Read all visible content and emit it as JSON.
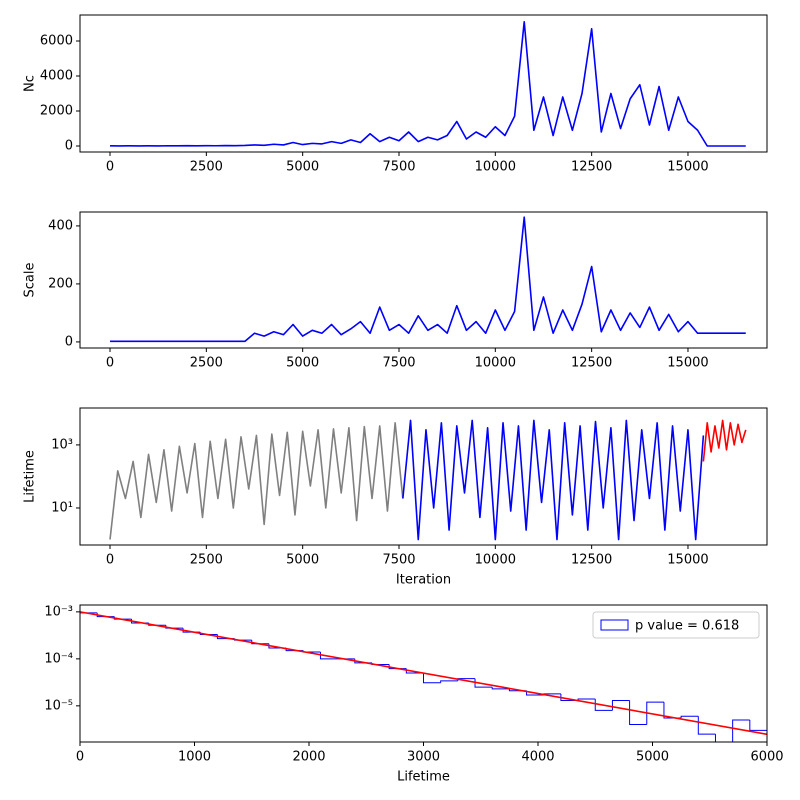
{
  "chart_data": [
    {
      "type": "line",
      "ylabel": "Nc",
      "x": [
        0,
        250,
        500,
        750,
        1000,
        1250,
        1500,
        1750,
        2000,
        2250,
        2500,
        2750,
        3000,
        3250,
        3500,
        3750,
        4000,
        4250,
        4500,
        4750,
        5000,
        5250,
        5500,
        5750,
        6000,
        6250,
        6500,
        6750,
        7000,
        7250,
        7500,
        7750,
        8000,
        8250,
        8500,
        8750,
        9000,
        9250,
        9500,
        9750,
        10000,
        10250,
        10500,
        10750,
        11000,
        11250,
        11500,
        11750,
        12000,
        12250,
        12500,
        12750,
        13000,
        13250,
        13500,
        13750,
        14000,
        14250,
        14500,
        14750,
        15000,
        15250,
        15500,
        15750,
        16000,
        16250,
        16500
      ],
      "series": [
        {
          "color": "#0000ff",
          "values": [
            10,
            5,
            10,
            5,
            10,
            5,
            15,
            10,
            20,
            10,
            20,
            15,
            25,
            20,
            30,
            60,
            40,
            100,
            60,
            200,
            80,
            150,
            120,
            250,
            150,
            350,
            200,
            700,
            250,
            500,
            300,
            800,
            250,
            500,
            350,
            600,
            1400,
            400,
            800,
            500,
            1100,
            600,
            1700,
            7100,
            900,
            2800,
            600,
            2800,
            900,
            3000,
            6700,
            800,
            3000,
            1000,
            2700,
            3500,
            1200,
            3400,
            900,
            2800,
            1400,
            900,
            0,
            0,
            0,
            0,
            0
          ]
        }
      ],
      "xlim": [
        -779,
        17051
      ],
      "xticks": [
        0,
        2500,
        5000,
        7500,
        10000,
        12500,
        15000
      ],
      "ylim": [
        -343,
        7486
      ],
      "yticks": [
        0,
        2000,
        4000,
        6000
      ]
    },
    {
      "type": "line",
      "ylabel": "Scale",
      "x": [
        0,
        250,
        500,
        750,
        1000,
        1250,
        1500,
        1750,
        2000,
        2250,
        2500,
        2750,
        3000,
        3250,
        3500,
        3750,
        4000,
        4250,
        4500,
        4750,
        5000,
        5250,
        5500,
        5750,
        6000,
        6250,
        6500,
        6750,
        7000,
        7250,
        7500,
        7750,
        8000,
        8250,
        8500,
        8750,
        9000,
        9250,
        9500,
        9750,
        10000,
        10250,
        10500,
        10750,
        11000,
        11250,
        11500,
        11750,
        12000,
        12250,
        12500,
        12750,
        13000,
        13250,
        13500,
        13750,
        14000,
        14250,
        14500,
        14750,
        15000,
        15250,
        15500,
        15750,
        16000,
        16250,
        16500
      ],
      "series": [
        {
          "color": "#0000ff",
          "values": [
            2,
            2,
            2,
            2,
            2,
            2,
            2,
            2,
            2,
            2,
            2,
            2,
            2,
            2,
            2,
            30,
            20,
            35,
            25,
            60,
            20,
            40,
            30,
            60,
            25,
            45,
            70,
            30,
            120,
            40,
            60,
            30,
            90,
            40,
            60,
            30,
            125,
            40,
            70,
            30,
            110,
            40,
            105,
            430,
            40,
            155,
            30,
            110,
            40,
            130,
            260,
            35,
            110,
            40,
            100,
            50,
            120,
            40,
            95,
            35,
            70,
            30,
            30,
            30,
            30,
            30,
            30
          ]
        }
      ],
      "xlim": [
        -779,
        17051
      ],
      "xticks": [
        0,
        2500,
        5000,
        7500,
        10000,
        12500,
        15000
      ],
      "ylim": [
        -21,
        448
      ],
      "yticks": [
        0,
        200,
        400
      ]
    },
    {
      "type": "line",
      "ylabel": "Lifetime",
      "xlabel": "Iteration",
      "log_y": true,
      "series": [
        {
          "color": "#808080",
          "x": [
            0,
            200,
            400,
            600,
            800,
            1000,
            1200,
            1400,
            1600,
            1800,
            2000,
            2200,
            2400,
            2600,
            2800,
            3000,
            3200,
            3400,
            3600,
            3800,
            4000,
            4200,
            4400,
            4600,
            4800,
            5000,
            5200,
            5400,
            5600,
            5800,
            6000,
            6200,
            6400,
            6600,
            6800,
            7000,
            7200,
            7400,
            7600
          ],
          "values": [
            1,
            150,
            20,
            300,
            5,
            500,
            15,
            700,
            8,
            900,
            30,
            1100,
            5,
            1300,
            20,
            1500,
            10,
            1800,
            40,
            2000,
            3,
            2200,
            25,
            2500,
            6,
            2700,
            50,
            3000,
            10,
            3200,
            30,
            3500,
            4,
            3800,
            20,
            4000,
            8,
            5000,
            20
          ]
        },
        {
          "color": "#0000ff",
          "x": [
            7600,
            7800,
            8000,
            8200,
            8400,
            8600,
            8800,
            9000,
            9200,
            9400,
            9600,
            9800,
            10000,
            10200,
            10400,
            10600,
            10800,
            11000,
            11200,
            11400,
            11600,
            11800,
            12000,
            12200,
            12400,
            12600,
            12800,
            13000,
            13200,
            13400,
            13600,
            13800,
            14000,
            14200,
            14400,
            14600,
            14800,
            15000,
            15200,
            15400
          ],
          "values": [
            20,
            6000,
            1,
            3000,
            10,
            5000,
            2,
            4000,
            30,
            6000,
            5,
            3500,
            1,
            5000,
            8,
            4000,
            2,
            6000,
            15,
            3000,
            1,
            5000,
            6,
            4000,
            2,
            5500,
            10,
            3500,
            1,
            6000,
            4,
            3000,
            20,
            5000,
            2,
            4000,
            8,
            3000,
            1,
            2000
          ]
        },
        {
          "color": "#ff0000",
          "x": [
            15400,
            15500,
            15600,
            15700,
            15800,
            15900,
            16000,
            16100,
            16200,
            16300,
            16400,
            16500
          ],
          "values": [
            300,
            5000,
            600,
            4000,
            800,
            6000,
            700,
            5000,
            1000,
            4500,
            1200,
            3000
          ]
        }
      ],
      "xlim": [
        -779,
        17051
      ],
      "xticks": [
        0,
        2500,
        5000,
        7500,
        10000,
        12500,
        15000
      ],
      "ylim": [
        0.67,
        14800
      ],
      "yticks": [
        {
          "value": 10,
          "label": "10¹"
        },
        {
          "value": 1000,
          "label": "10³"
        }
      ]
    },
    {
      "type": "histogram",
      "xlabel": "Lifetime",
      "log_y": true,
      "legend": "upper right",
      "bins": [
        0,
        150,
        300,
        450,
        600,
        750,
        900,
        1050,
        1200,
        1350,
        1500,
        1650,
        1800,
        1950,
        2100,
        2250,
        2400,
        2550,
        2700,
        2850,
        3000,
        3150,
        3300,
        3450,
        3600,
        3750,
        3900,
        4050,
        4200,
        4350,
        4500,
        4650,
        4800,
        4950,
        5100,
        5250,
        5400,
        5550,
        5700,
        5850,
        6000
      ],
      "series": [
        {
          "name": "p value = 0.618",
          "color": "#0000ff",
          "values": [
            0.00095,
            0.00079,
            0.0007,
            0.00058,
            0.00052,
            0.00045,
            0.00037,
            0.00033,
            0.00027,
            0.00025,
            0.00021,
            0.00017,
            0.00015,
            0.00014,
            0.0001,
            0.0001,
            8.2e-05,
            7.6e-05,
            6.2e-05,
            5e-05,
            3.1e-05,
            3.4e-05,
            3.8e-05,
            2.5e-05,
            2.3e-05,
            2.1e-05,
            1.7e-05,
            1.8e-05,
            1.3e-05,
            1.4e-05,
            8e-06,
            1.3e-05,
            4e-06,
            1.2e-05,
            5.5e-06,
            6e-06,
            2.5e-06,
            1.5e-06,
            5e-06,
            3e-06
          ]
        }
      ],
      "fit": {
        "color": "#ff0000",
        "x": [
          0,
          6000
        ],
        "values": [
          0.001,
          2.48e-06
        ]
      },
      "xlim": [
        0,
        6000
      ],
      "xticks": [
        0,
        1000,
        2000,
        3000,
        4000,
        5000,
        6000
      ],
      "ylim": [
        1.7e-06,
        0.0014
      ],
      "yticks": [
        {
          "value": 1e-05,
          "label": "10⁻⁵"
        },
        {
          "value": 0.0001,
          "label": "10⁻⁴"
        },
        {
          "value": 0.001,
          "label": "10⁻³"
        }
      ]
    }
  ]
}
